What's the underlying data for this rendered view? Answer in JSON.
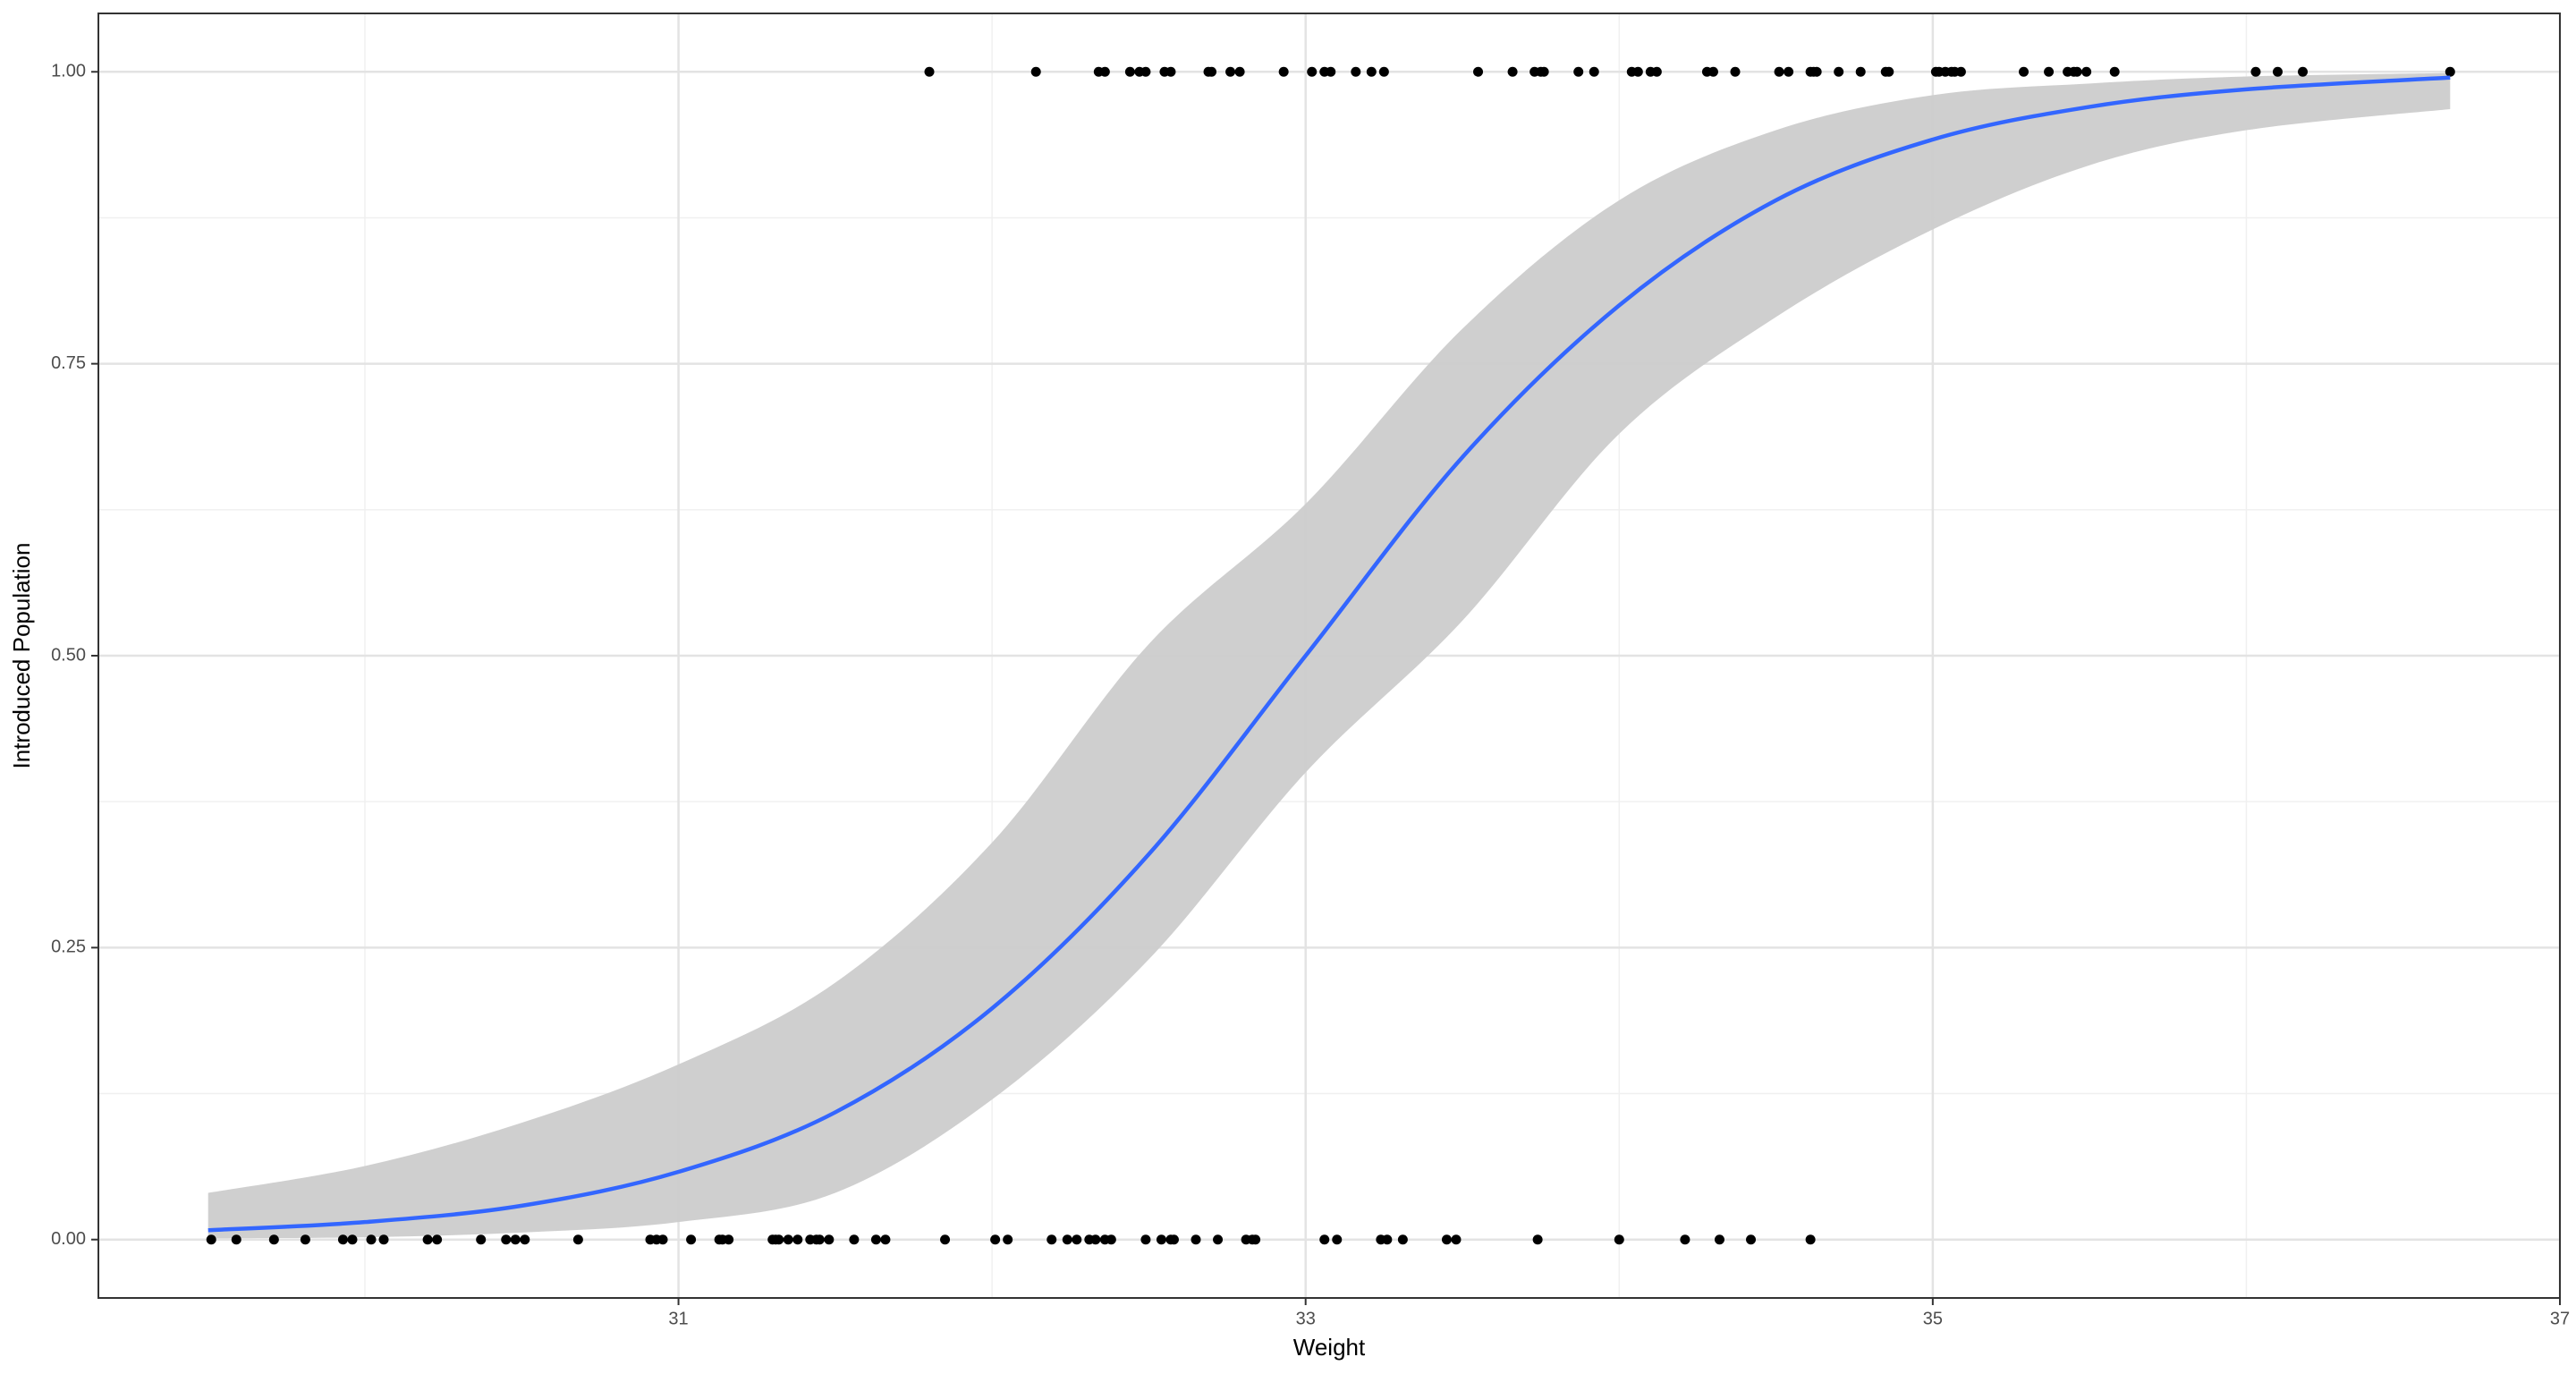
{
  "chart_data": {
    "type": "scatter",
    "x_label": "Weight",
    "y_label": "Introduced Population",
    "xlim": [
      29.15,
      37.0
    ],
    "ylim": [
      -0.05,
      1.05
    ],
    "xticks": [
      31,
      33,
      35,
      37
    ],
    "yticks": [
      {
        "value": 0,
        "label": "0.00"
      },
      {
        "value": 0.25,
        "label": "0.25"
      },
      {
        "value": 0.5,
        "label": "0.50"
      },
      {
        "value": 0.75,
        "label": "0.75"
      },
      {
        "value": 1,
        "label": "1.00"
      }
    ],
    "minor_xticks": [
      30,
      32,
      34,
      36
    ],
    "minor_yticks": [
      0.125,
      0.375,
      0.625,
      0.875
    ],
    "grid": true,
    "point_color": "#000000",
    "x": [
      31.8,
      32.14,
      32.34,
      32.36,
      32.44,
      32.47,
      32.49,
      32.55,
      32.57,
      32.69,
      32.7,
      32.76,
      32.79,
      32.93,
      33.02,
      33.06,
      33.08,
      33.16,
      33.21,
      33.25,
      33.55,
      33.66,
      33.73,
      33.75,
      33.76,
      33.87,
      33.92,
      34.04,
      34.06,
      34.1,
      34.12,
      34.28,
      34.3,
      34.37,
      34.51,
      34.54,
      34.61,
      34.62,
      34.63,
      34.7,
      34.77,
      34.85,
      34.86,
      35.01,
      35.02,
      35.04,
      35.06,
      35.07,
      35.09,
      35.29,
      35.37,
      35.43,
      35.45,
      35.46,
      35.49,
      35.58,
      36.03,
      36.1,
      36.18,
      36.65,
      29.51,
      29.59,
      29.71,
      29.81,
      29.93,
      29.96,
      30.02,
      30.06,
      30.2,
      30.23,
      30.37,
      30.45,
      30.48,
      30.51,
      30.68,
      30.91,
      30.93,
      30.95,
      31.04,
      31.13,
      31.14,
      31.16,
      31.3,
      31.31,
      31.32,
      31.35,
      31.38,
      31.42,
      31.44,
      31.45,
      31.48,
      31.56,
      31.63,
      31.66,
      31.85,
      32.01,
      32.05,
      32.19,
      32.24,
      32.27,
      32.31,
      32.33,
      32.36,
      32.38,
      32.49,
      32.54,
      32.57,
      32.58,
      32.65,
      32.72,
      32.81,
      32.83,
      32.84,
      33.06,
      33.1,
      33.24,
      33.26,
      33.31,
      33.45,
      33.48,
      33.74,
      34.0,
      34.21,
      34.32,
      34.42,
      34.61
    ],
    "y": [
      1,
      1,
      1,
      1,
      1,
      1,
      1,
      1,
      1,
      1,
      1,
      1,
      1,
      1,
      1,
      1,
      1,
      1,
      1,
      1,
      1,
      1,
      1,
      1,
      1,
      1,
      1,
      1,
      1,
      1,
      1,
      1,
      1,
      1,
      1,
      1,
      1,
      1,
      1,
      1,
      1,
      1,
      1,
      1,
      1,
      1,
      1,
      1,
      1,
      1,
      1,
      1,
      1,
      1,
      1,
      1,
      1,
      1,
      1,
      1,
      0,
      0,
      0,
      0,
      0,
      0,
      0,
      0,
      0,
      0,
      0,
      0,
      0,
      0,
      0,
      0,
      0,
      0,
      0,
      0,
      0,
      0,
      0,
      0,
      0,
      0,
      0,
      0,
      0,
      0,
      0,
      0,
      0,
      0,
      0,
      0,
      0,
      0,
      0,
      0,
      0,
      0,
      0,
      0,
      0,
      0,
      0,
      0,
      0,
      0,
      0,
      0,
      0,
      0,
      0,
      0,
      0,
      0,
      0,
      0,
      0,
      0,
      0,
      0,
      0,
      0
    ],
    "fit": {
      "color": "#3366ff",
      "band_color": "#cccccc",
      "x": [
        29.5,
        30,
        30.5,
        31,
        31.5,
        32,
        32.5,
        33,
        33.5,
        34,
        34.5,
        35,
        35.5,
        36,
        36.65
      ],
      "y": [
        0.008,
        0.015,
        0.029,
        0.058,
        0.109,
        0.198,
        0.33,
        0.5,
        0.67,
        0.8,
        0.89,
        0.942,
        0.97,
        0.985,
        0.995
      ],
      "lower": [
        0.001,
        0.002,
        0.006,
        0.015,
        0.04,
        0.12,
        0.24,
        0.4,
        0.53,
        0.69,
        0.79,
        0.865,
        0.92,
        0.95,
        0.968
      ],
      "upper": [
        0.04,
        0.063,
        0.1,
        0.15,
        0.22,
        0.34,
        0.51,
        0.63,
        0.78,
        0.89,
        0.95,
        0.98,
        0.99,
        0.996,
        0.999
      ]
    }
  }
}
